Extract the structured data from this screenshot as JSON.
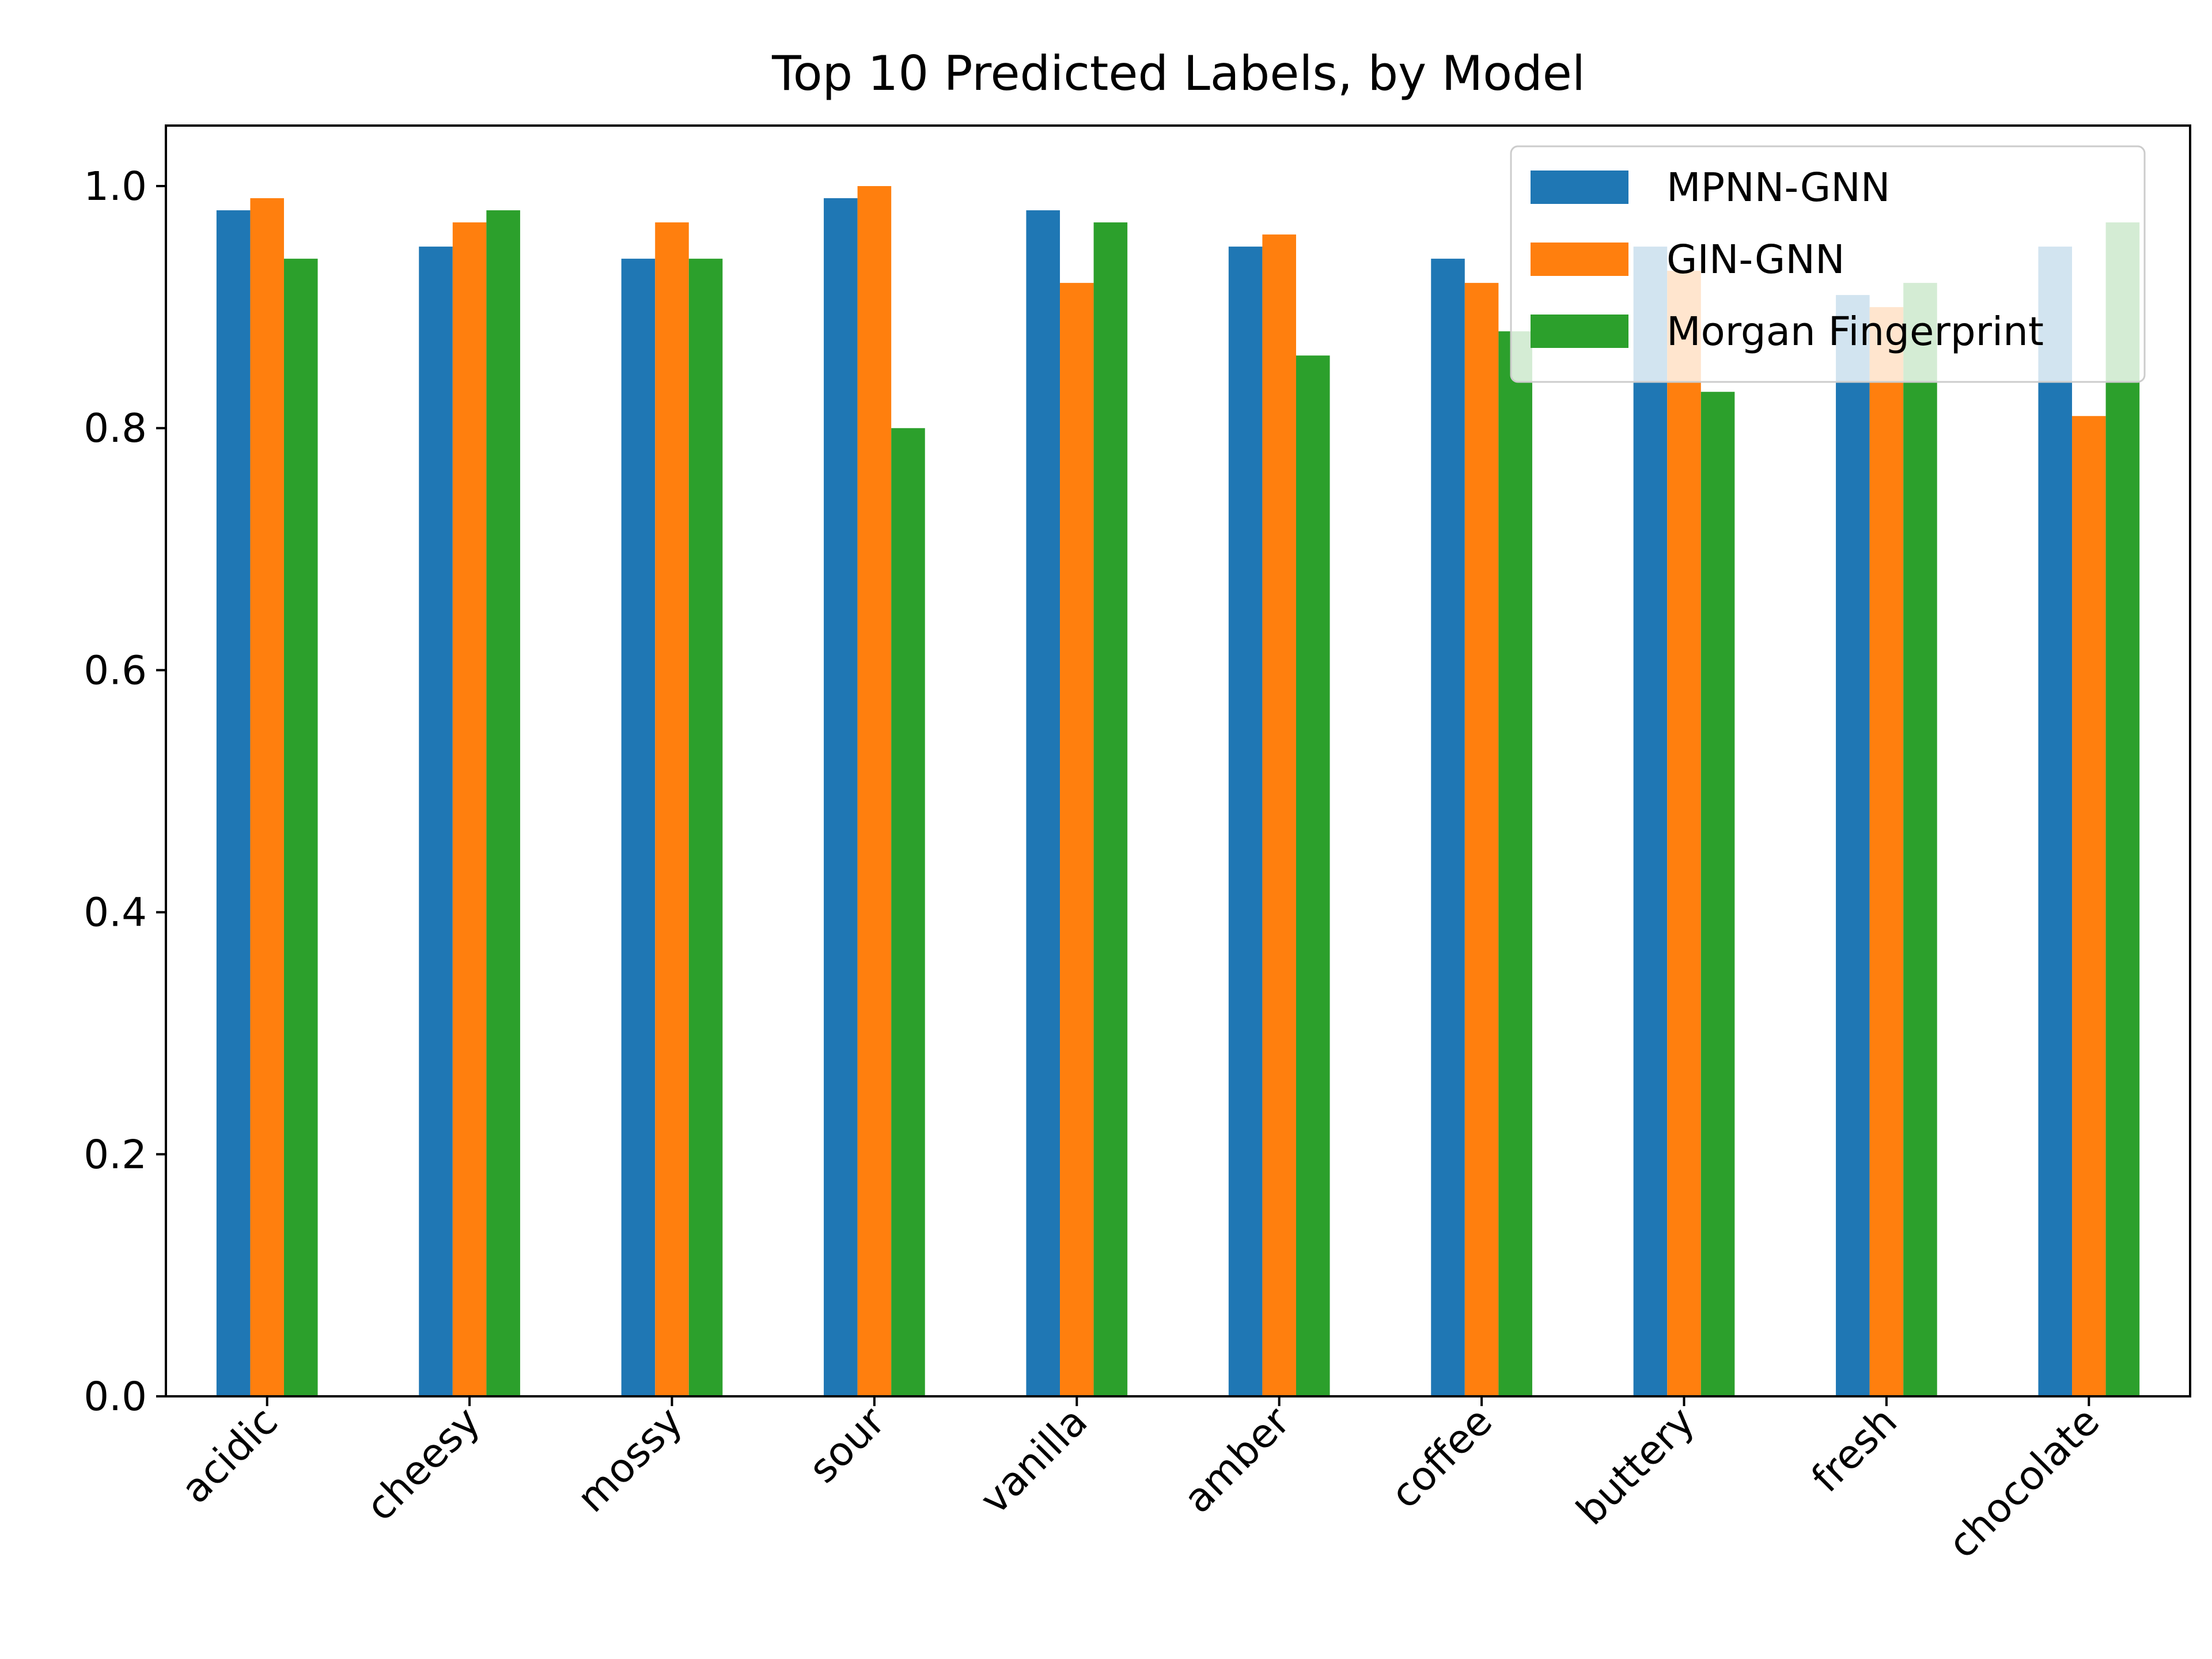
{
  "chart_data": {
    "type": "bar",
    "title": "Top 10 Predicted Labels, by Model",
    "xlabel": "",
    "ylabel": "",
    "categories": [
      "acidic",
      "cheesy",
      "mossy",
      "sour",
      "vanilla",
      "amber",
      "coffee",
      "buttery",
      "fresh",
      "chocolate"
    ],
    "series": [
      {
        "name": "MPNN-GNN",
        "color": "#1f77b4",
        "values": [
          0.98,
          0.95,
          0.94,
          0.99,
          0.98,
          0.95,
          0.94,
          0.95,
          0.91,
          0.95
        ]
      },
      {
        "name": "GIN-GNN",
        "color": "#ff7f0e",
        "values": [
          0.99,
          0.97,
          0.97,
          1.0,
          0.92,
          0.96,
          0.92,
          0.93,
          0.9,
          0.81
        ]
      },
      {
        "name": "Morgan Fingerprint",
        "color": "#2ca02c",
        "values": [
          0.94,
          0.98,
          0.94,
          0.8,
          0.97,
          0.86,
          0.88,
          0.83,
          0.92,
          0.97
        ]
      }
    ],
    "ylim": [
      0,
      1.05
    ],
    "yticks": [
      "0.0",
      "0.2",
      "0.4",
      "0.6",
      "0.8",
      "1.0"
    ],
    "grid": false,
    "legend_position": "top-right",
    "xtick_rotation": 45
  }
}
